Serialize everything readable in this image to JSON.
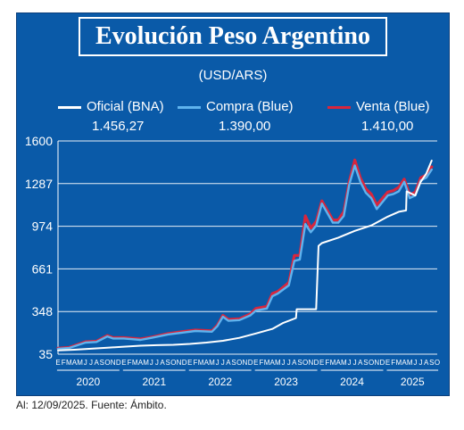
{
  "title": "Evolución Peso Argentino",
  "unit": "(USD/ARS)",
  "caption": "Al: 12/09/2025. Fuente: Ámbito.",
  "colors": {
    "background": "#0a5aa8",
    "oficial": "#ffffff",
    "compra": "#5fb3ee",
    "venta": "#d8263d"
  },
  "legend": [
    {
      "name": "Oficial (BNA)",
      "value": "1.456,27"
    },
    {
      "name": "Compra (Blue)",
      "value": "1.390,00"
    },
    {
      "name": "Venta (Blue)",
      "value": "1.410,00"
    }
  ],
  "chart_data": {
    "type": "line",
    "ylim": [
      35,
      1600
    ],
    "yticks": [
      "1600",
      "1287",
      "974",
      "661",
      "348",
      "35"
    ],
    "ytick_values": [
      1600,
      1287,
      974,
      661,
      348,
      35
    ],
    "grid": true,
    "legend_placement": "top",
    "month_letters": [
      "E",
      "F",
      "M",
      "A",
      "M",
      "J",
      "J",
      "A",
      "S",
      "O",
      "N",
      "D"
    ],
    "years": [
      "2020",
      "2021",
      "2022",
      "2023",
      "2024",
      "2025"
    ],
    "series": [
      {
        "name": "Oficial (BNA)",
        "x": [
          "2020-01",
          "2020-04",
          "2020-07",
          "2020-10",
          "2021-01",
          "2021-04",
          "2021-07",
          "2021-10",
          "2022-01",
          "2022-04",
          "2022-07",
          "2022-10",
          "2023-01",
          "2023-04",
          "2023-06",
          "2023-08-10",
          "2023-08-14",
          "2023-11-30",
          "2023-12-13",
          "2024-01",
          "2024-04",
          "2024-07",
          "2024-10",
          "2025-01",
          "2025-03",
          "2025-04-11",
          "2025-04-14",
          "2025-06",
          "2025-07",
          "2025-08",
          "2025-09"
        ],
        "values": [
          63,
          68,
          75,
          82,
          90,
          97,
          101,
          104,
          110,
          120,
          133,
          155,
          187,
          220,
          265,
          300,
          365,
          365,
          830,
          850,
          890,
          940,
          980,
          1045,
          1080,
          1090,
          1230,
          1200,
          1300,
          1360,
          1456
        ]
      },
      {
        "name": "Compra (Blue)",
        "x": [
          "2020-01",
          "2020-03",
          "2020-06",
          "2020-08",
          "2020-10",
          "2020-11",
          "2021-01",
          "2021-04",
          "2021-06",
          "2021-09",
          "2021-12",
          "2022-02",
          "2022-05",
          "2022-06",
          "2022-07",
          "2022-08",
          "2022-10",
          "2022-12",
          "2023-01",
          "2023-03",
          "2023-04",
          "2023-05",
          "2023-07",
          "2023-08",
          "2023-09",
          "2023-10",
          "2023-11",
          "2023-12",
          "2024-01",
          "2024-03",
          "2024-04",
          "2024-05",
          "2024-06",
          "2024-07",
          "2024-08",
          "2024-09",
          "2024-10",
          "2024-11",
          "2025-01",
          "2025-02",
          "2025-03",
          "2025-04",
          "2025-05",
          "2025-06",
          "2025-07",
          "2025-08",
          "2025-09"
        ],
        "values": [
          75,
          80,
          120,
          125,
          165,
          150,
          150,
          140,
          155,
          180,
          195,
          205,
          200,
          240,
          310,
          280,
          285,
          320,
          355,
          370,
          460,
          480,
          540,
          720,
          730,
          990,
          930,
          980,
          1140,
          1000,
          1000,
          1050,
          1280,
          1420,
          1300,
          1220,
          1180,
          1100,
          1200,
          1210,
          1230,
          1300,
          1180,
          1200,
          1310,
          1330,
          1390
        ]
      },
      {
        "name": "Venta (Blue)",
        "x": [
          "2020-01",
          "2020-03",
          "2020-06",
          "2020-08",
          "2020-10",
          "2020-11",
          "2021-01",
          "2021-04",
          "2021-06",
          "2021-09",
          "2021-12",
          "2022-02",
          "2022-05",
          "2022-06",
          "2022-07",
          "2022-08",
          "2022-10",
          "2022-12",
          "2023-01",
          "2023-03",
          "2023-04",
          "2023-05",
          "2023-07",
          "2023-08",
          "2023-09",
          "2023-10",
          "2023-11",
          "2023-12",
          "2024-01",
          "2024-03",
          "2024-04",
          "2024-05",
          "2024-06",
          "2024-07",
          "2024-08",
          "2024-09",
          "2024-10",
          "2024-11",
          "2025-01",
          "2025-02",
          "2025-03",
          "2025-04",
          "2025-05",
          "2025-06",
          "2025-07",
          "2025-08",
          "2025-09"
        ],
        "values": [
          78,
          84,
          126,
          130,
          172,
          156,
          156,
          146,
          160,
          186,
          202,
          212,
          206,
          248,
          320,
          290,
          294,
          330,
          370,
          385,
          480,
          495,
          560,
          760,
          760,
          1050,
          960,
          1010,
          1160,
          1020,
          1020,
          1080,
          1300,
          1460,
          1330,
          1250,
          1210,
          1130,
          1225,
          1235,
          1260,
          1320,
          1205,
          1225,
          1330,
          1350,
          1410
        ]
      }
    ]
  }
}
